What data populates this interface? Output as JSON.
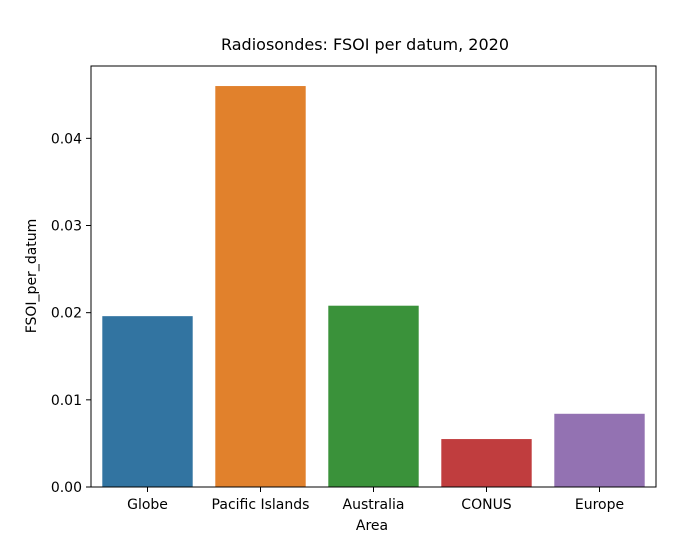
{
  "chart_data": {
    "type": "bar",
    "title": "Radiosondes: FSOI per datum, 2020",
    "xlabel": "Area",
    "ylabel": "FSOI_per_datum",
    "categories": [
      "Globe",
      "Pacific Islands",
      "Australia",
      "CONUS",
      "Europe"
    ],
    "values": [
      0.0196,
      0.046,
      0.0208,
      0.0055,
      0.0084
    ],
    "colors": [
      "#3274a1",
      "#e1812c",
      "#3a923a",
      "#c03d3e",
      "#9372b2"
    ],
    "ylim": [
      0,
      0.0483
    ],
    "yticks": [
      0.0,
      0.01,
      0.02,
      0.03,
      0.04
    ],
    "ytick_labels": [
      "0.00",
      "0.01",
      "0.02",
      "0.03",
      "0.04"
    ],
    "grid": false,
    "legend": "none"
  }
}
